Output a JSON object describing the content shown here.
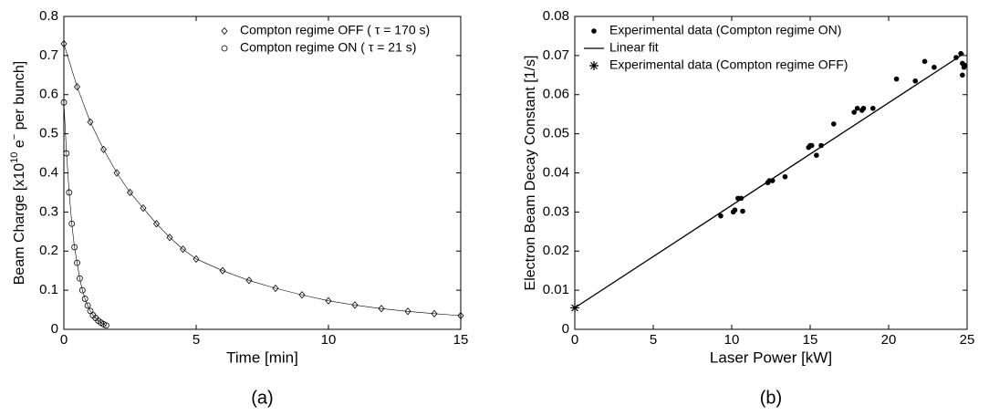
{
  "chart_data": [
    {
      "type": "line",
      "panel_label": "(a)",
      "xlabel": "Time [min]",
      "ylabel": [
        {
          "text": "Beam Charge [x10"
        },
        {
          "text": "10",
          "sup": true
        },
        {
          "text": " e"
        },
        {
          "text": "−",
          "sup": true
        },
        {
          "text": " per bunch]"
        }
      ],
      "xlim": [
        0,
        15
      ],
      "ylim": [
        0,
        0.8
      ],
      "xticks": [
        0,
        5,
        10,
        15
      ],
      "yticks": [
        0,
        0.1,
        0.2,
        0.3,
        0.4,
        0.5,
        0.6,
        0.7,
        0.8
      ],
      "legend": "upper right",
      "color": "#000000",
      "series": [
        {
          "name": "Compton regime OFF ( τ = 170 s)",
          "marker": "diamond",
          "x": [
            0,
            0.5,
            1,
            1.5,
            2,
            2.5,
            3,
            3.5,
            4,
            4.5,
            5,
            6,
            7,
            8,
            9,
            10,
            11,
            12,
            13,
            14,
            15
          ],
          "values": [
            0.73,
            0.62,
            0.53,
            0.46,
            0.4,
            0.35,
            0.31,
            0.27,
            0.235,
            0.205,
            0.18,
            0.15,
            0.125,
            0.105,
            0.088,
            0.073,
            0.062,
            0.053,
            0.046,
            0.04,
            0.035
          ]
        },
        {
          "name": "Compton regime ON ( τ = 21 s)",
          "marker": "circle",
          "x": [
            0,
            0.1,
            0.2,
            0.3,
            0.4,
            0.5,
            0.6,
            0.7,
            0.8,
            0.9,
            1.0,
            1.1,
            1.2,
            1.3,
            1.4,
            1.5,
            1.6
          ],
          "values": [
            0.58,
            0.45,
            0.35,
            0.27,
            0.21,
            0.17,
            0.13,
            0.1,
            0.078,
            0.061,
            0.047,
            0.036,
            0.029,
            0.022,
            0.017,
            0.013,
            0.01
          ]
        }
      ]
    },
    {
      "type": "scatter",
      "panel_label": "(b)",
      "xlabel": "Laser Power [kW]",
      "ylabel": [
        {
          "text": "Electron Beam Decay Constant [1/s]"
        }
      ],
      "xlim": [
        0,
        25
      ],
      "ylim": [
        0,
        0.08
      ],
      "xticks": [
        0,
        5,
        10,
        15,
        20,
        25
      ],
      "yticks": [
        0,
        0.01,
        0.02,
        0.03,
        0.04,
        0.05,
        0.06,
        0.07,
        0.08
      ],
      "legend": "upper left",
      "color": "#000000",
      "series": [
        {
          "name": "Experimental data (Compton regime ON)",
          "marker": "dot",
          "x": [
            9.3,
            10.1,
            10.2,
            10.4,
            10.6,
            10.7,
            12.3,
            12.4,
            12.6,
            13.4,
            14.9,
            15.0,
            15.1,
            15.4,
            15.7,
            16.5,
            17.8,
            18.0,
            18.3,
            18.4,
            19.0,
            20.5,
            21.7,
            22.3,
            22.9,
            24.3,
            24.6,
            24.7,
            24.8,
            24.7,
            24.85
          ],
          "values": [
            0.029,
            0.03,
            0.0305,
            0.0335,
            0.0335,
            0.0302,
            0.0375,
            0.038,
            0.038,
            0.039,
            0.0465,
            0.047,
            0.047,
            0.0445,
            0.047,
            0.0525,
            0.0555,
            0.0565,
            0.056,
            0.0565,
            0.0565,
            0.064,
            0.0635,
            0.0685,
            0.067,
            0.0695,
            0.0705,
            0.068,
            0.067,
            0.065,
            0.0675
          ]
        },
        {
          "name": "Linear fit",
          "marker": "line",
          "x": [
            0,
            24.8
          ],
          "values": [
            0.0055,
            0.0705
          ]
        },
        {
          "name": "Experimental data (Compton regime OFF)",
          "marker": "star",
          "x": [
            0
          ],
          "values": [
            0.0055
          ]
        }
      ]
    }
  ]
}
